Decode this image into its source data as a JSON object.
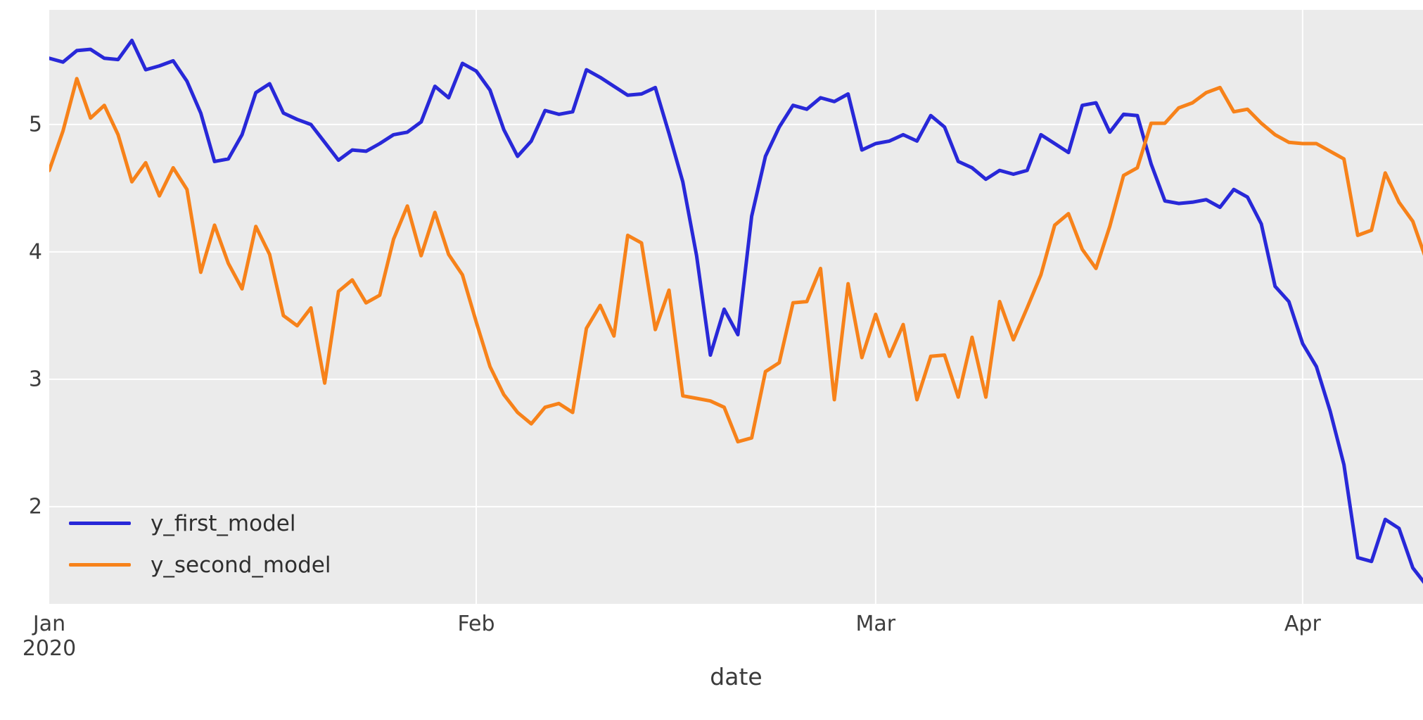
{
  "figure": {
    "background": "#ffffff",
    "plot_background": "#ebebeb",
    "grid_color": "#ffffff",
    "tick_color": "#3d3d3d"
  },
  "legend": {
    "items": [
      {
        "label": "y_first_model",
        "color": "#2828d8"
      },
      {
        "label": "y_second_model",
        "color": "#f7821a"
      }
    ]
  },
  "chart_data": {
    "type": "line",
    "title": "",
    "xlabel": "date",
    "ylabel": "",
    "grid": true,
    "legend_position": "lower left",
    "ylim": [
      1.237,
      5.9
    ],
    "xlim_days": [
      0,
      99.74
    ],
    "ytick_values": [
      2,
      3,
      4,
      5
    ],
    "xticks": [
      {
        "label": "Jan",
        "sublabel": "2020",
        "day": 0
      },
      {
        "label": "Feb",
        "sublabel": "",
        "day": 31
      },
      {
        "label": "Mar",
        "sublabel": "",
        "day": 60
      },
      {
        "label": "Apr",
        "sublabel": "",
        "day": 91
      }
    ],
    "x": [
      "2020-01-01",
      "2020-01-02",
      "2020-01-03",
      "2020-01-04",
      "2020-01-05",
      "2020-01-06",
      "2020-01-07",
      "2020-01-08",
      "2020-01-09",
      "2020-01-10",
      "2020-01-11",
      "2020-01-12",
      "2020-01-13",
      "2020-01-14",
      "2020-01-15",
      "2020-01-16",
      "2020-01-17",
      "2020-01-18",
      "2020-01-19",
      "2020-01-20",
      "2020-01-21",
      "2020-01-22",
      "2020-01-23",
      "2020-01-24",
      "2020-01-25",
      "2020-01-26",
      "2020-01-27",
      "2020-01-28",
      "2020-01-29",
      "2020-01-30",
      "2020-01-31",
      "2020-02-01",
      "2020-02-02",
      "2020-02-03",
      "2020-02-04",
      "2020-02-05",
      "2020-02-06",
      "2020-02-07",
      "2020-02-08",
      "2020-02-09",
      "2020-02-10",
      "2020-02-11",
      "2020-02-12",
      "2020-02-13",
      "2020-02-14",
      "2020-02-15",
      "2020-02-16",
      "2020-02-17",
      "2020-02-18",
      "2020-02-19",
      "2020-02-20",
      "2020-02-21",
      "2020-02-22",
      "2020-02-23",
      "2020-02-24",
      "2020-02-25",
      "2020-02-26",
      "2020-02-27",
      "2020-02-28",
      "2020-02-29",
      "2020-03-01",
      "2020-03-02",
      "2020-03-03",
      "2020-03-04",
      "2020-03-05",
      "2020-03-06",
      "2020-03-07",
      "2020-03-08",
      "2020-03-09",
      "2020-03-10",
      "2020-03-11",
      "2020-03-12",
      "2020-03-13",
      "2020-03-14",
      "2020-03-15",
      "2020-03-16",
      "2020-03-17",
      "2020-03-18",
      "2020-03-19",
      "2020-03-20",
      "2020-03-21",
      "2020-03-22",
      "2020-03-23",
      "2020-03-24",
      "2020-03-25",
      "2020-03-26",
      "2020-03-27",
      "2020-03-28",
      "2020-03-29",
      "2020-03-30",
      "2020-03-31",
      "2020-04-01",
      "2020-04-02",
      "2020-04-03",
      "2020-04-04",
      "2020-04-05",
      "2020-04-06",
      "2020-04-07",
      "2020-04-08",
      "2020-04-09",
      "2020-04-10"
    ],
    "series": [
      {
        "name": "y_first_model",
        "color": "#2828d8",
        "values": [
          5.52,
          5.49,
          5.58,
          5.59,
          5.52,
          5.51,
          5.66,
          5.43,
          5.46,
          5.5,
          5.34,
          5.09,
          4.71,
          4.73,
          4.92,
          5.25,
          5.32,
          5.09,
          5.04,
          5.0,
          4.86,
          4.72,
          4.8,
          4.79,
          4.85,
          4.92,
          4.94,
          5.02,
          5.3,
          5.21,
          5.48,
          5.42,
          5.27,
          4.96,
          4.75,
          4.87,
          5.11,
          5.08,
          5.1,
          5.43,
          5.37,
          5.3,
          5.23,
          5.24,
          5.29,
          4.93,
          4.55,
          3.97,
          3.19,
          3.55,
          3.35,
          4.28,
          4.75,
          4.98,
          5.15,
          5.12,
          5.21,
          5.18,
          5.24,
          4.8,
          4.85,
          4.87,
          4.92,
          4.87,
          5.07,
          4.98,
          4.71,
          4.66,
          4.57,
          4.64,
          4.61,
          4.64,
          4.92,
          4.85,
          4.78,
          5.15,
          5.17,
          4.94,
          5.08,
          5.07,
          4.69,
          4.4,
          4.38,
          4.39,
          4.41,
          4.35,
          4.49,
          4.43,
          4.22,
          3.73,
          3.61,
          3.28,
          3.1,
          2.75,
          2.33,
          1.6,
          1.57,
          1.9,
          1.83,
          1.52,
          1.38
        ]
      },
      {
        "name": "y_second_model",
        "color": "#f7821a",
        "values": [
          4.64,
          4.95,
          5.36,
          5.05,
          5.15,
          4.92,
          4.55,
          4.7,
          4.44,
          4.66,
          4.49,
          3.84,
          4.21,
          3.91,
          3.71,
          4.2,
          3.98,
          3.5,
          3.42,
          3.56,
          2.97,
          3.69,
          3.78,
          3.6,
          3.66,
          4.1,
          4.36,
          3.97,
          4.31,
          3.98,
          3.82,
          3.45,
          3.1,
          2.88,
          2.74,
          2.65,
          2.78,
          2.81,
          2.74,
          3.4,
          3.58,
          3.34,
          4.13,
          4.07,
          3.39,
          3.7,
          2.87,
          2.85,
          2.83,
          2.78,
          2.51,
          2.54,
          3.06,
          3.13,
          3.6,
          3.61,
          3.87,
          2.84,
          3.75,
          3.17,
          3.51,
          3.18,
          3.43,
          2.84,
          3.18,
          3.19,
          2.86,
          3.33,
          2.86,
          3.61,
          3.31,
          3.56,
          3.82,
          4.21,
          4.3,
          4.02,
          3.87,
          4.2,
          4.6,
          4.66,
          5.01,
          5.01,
          5.13,
          5.17,
          5.25,
          5.29,
          5.1,
          5.12,
          5.01,
          4.92,
          4.86,
          4.85,
          4.85,
          4.79,
          4.73,
          4.13,
          4.17,
          4.62,
          4.39,
          4.24,
          3.93
        ]
      }
    ]
  }
}
